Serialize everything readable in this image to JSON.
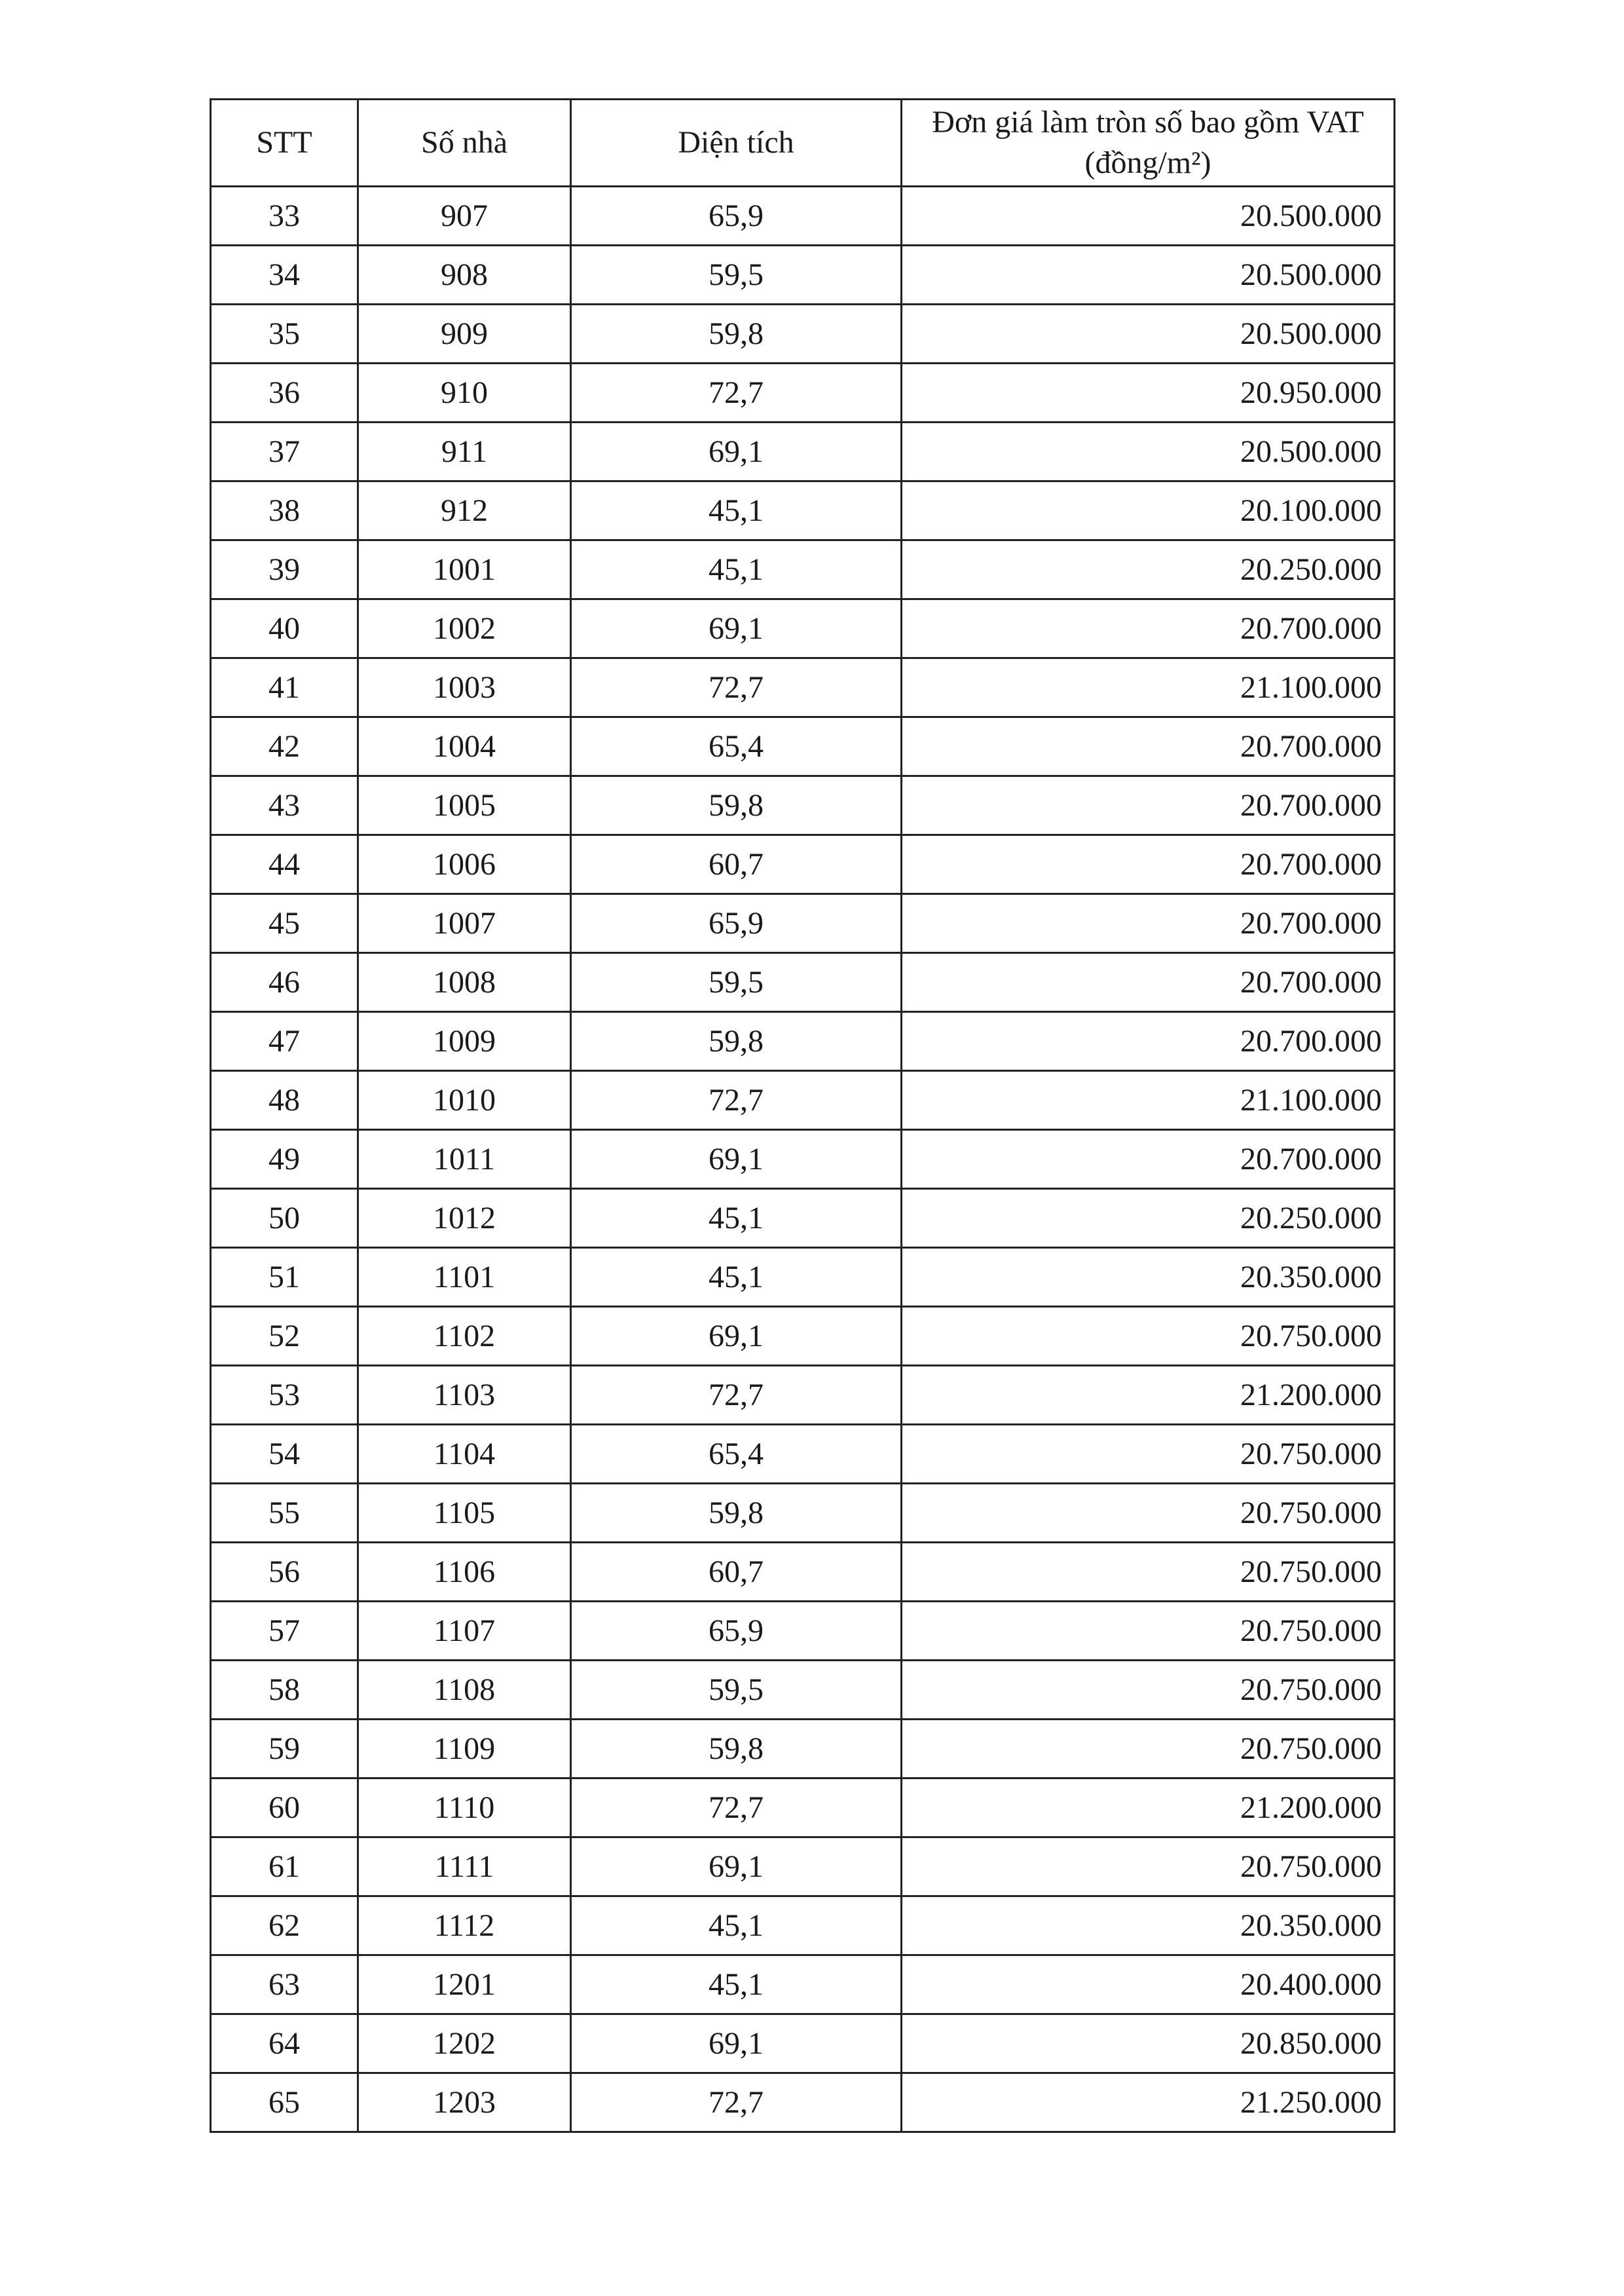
{
  "table": {
    "headers": [
      "STT",
      "Số nhà",
      "Diện tích",
      "Đơn giá làm tròn số bao gồm VAT (đồng/m²)"
    ],
    "rows": [
      [
        "33",
        "907",
        "65,9",
        "20.500.000"
      ],
      [
        "34",
        "908",
        "59,5",
        "20.500.000"
      ],
      [
        "35",
        "909",
        "59,8",
        "20.500.000"
      ],
      [
        "36",
        "910",
        "72,7",
        "20.950.000"
      ],
      [
        "37",
        "911",
        "69,1",
        "20.500.000"
      ],
      [
        "38",
        "912",
        "45,1",
        "20.100.000"
      ],
      [
        "39",
        "1001",
        "45,1",
        "20.250.000"
      ],
      [
        "40",
        "1002",
        "69,1",
        "20.700.000"
      ],
      [
        "41",
        "1003",
        "72,7",
        "21.100.000"
      ],
      [
        "42",
        "1004",
        "65,4",
        "20.700.000"
      ],
      [
        "43",
        "1005",
        "59,8",
        "20.700.000"
      ],
      [
        "44",
        "1006",
        "60,7",
        "20.700.000"
      ],
      [
        "45",
        "1007",
        "65,9",
        "20.700.000"
      ],
      [
        "46",
        "1008",
        "59,5",
        "20.700.000"
      ],
      [
        "47",
        "1009",
        "59,8",
        "20.700.000"
      ],
      [
        "48",
        "1010",
        "72,7",
        "21.100.000"
      ],
      [
        "49",
        "1011",
        "69,1",
        "20.700.000"
      ],
      [
        "50",
        "1012",
        "45,1",
        "20.250.000"
      ],
      [
        "51",
        "1101",
        "45,1",
        "20.350.000"
      ],
      [
        "52",
        "1102",
        "69,1",
        "20.750.000"
      ],
      [
        "53",
        "1103",
        "72,7",
        "21.200.000"
      ],
      [
        "54",
        "1104",
        "65,4",
        "20.750.000"
      ],
      [
        "55",
        "1105",
        "59,8",
        "20.750.000"
      ],
      [
        "56",
        "1106",
        "60,7",
        "20.750.000"
      ],
      [
        "57",
        "1107",
        "65,9",
        "20.750.000"
      ],
      [
        "58",
        "1108",
        "59,5",
        "20.750.000"
      ],
      [
        "59",
        "1109",
        "59,8",
        "20.750.000"
      ],
      [
        "60",
        "1110",
        "72,7",
        "21.200.000"
      ],
      [
        "61",
        "1111",
        "69,1",
        "20.750.000"
      ],
      [
        "62",
        "1112",
        "45,1",
        "20.350.000"
      ],
      [
        "63",
        "1201",
        "45,1",
        "20.400.000"
      ],
      [
        "64",
        "1202",
        "69,1",
        "20.850.000"
      ],
      [
        "65",
        "1203",
        "72,7",
        "21.250.000"
      ]
    ]
  }
}
